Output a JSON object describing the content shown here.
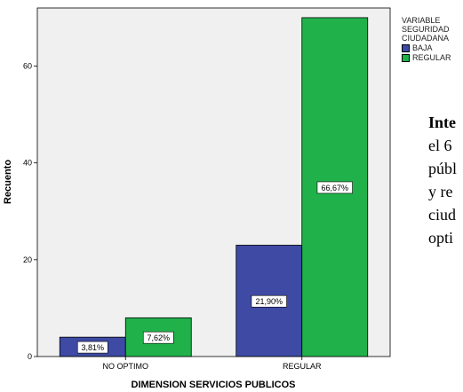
{
  "chart_data": {
    "type": "bar",
    "categories": [
      "NO OPTIMO",
      "REGULAR"
    ],
    "series": [
      {
        "name": "BAJA",
        "color": "#3e4aa4",
        "values": [
          4,
          23
        ],
        "labels": [
          "3,81%",
          "21,90%"
        ]
      },
      {
        "name": "REGULAR",
        "color": "#21b14b",
        "values": [
          8,
          70
        ],
        "labels": [
          "7,62%",
          "66,67%"
        ]
      }
    ],
    "xlabel": "DIMENSION SERVICIOS PUBLICOS",
    "ylabel": "Recuento",
    "ylim": [
      0,
      72
    ],
    "yticks": [
      0,
      20,
      40,
      60
    ],
    "grid": false,
    "legend": {
      "title_lines": [
        "VARIABLE",
        "SEGURIDAD",
        "CIUDADANA"
      ],
      "placement": "right"
    },
    "plot_background": "#f0f0f0"
  },
  "side_text": {
    "lead": "Inte",
    "lines": [
      "el 6",
      "públ",
      "y re",
      "ciud",
      "opti"
    ]
  }
}
